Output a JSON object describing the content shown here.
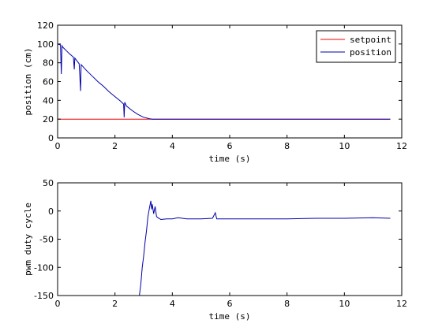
{
  "chart_data": [
    {
      "type": "line",
      "xlabel": "time (s)",
      "ylabel": "position (cm)",
      "xlim": [
        0,
        12
      ],
      "ylim": [
        0,
        120
      ],
      "xticks": [
        0,
        2,
        4,
        6,
        8,
        10,
        12
      ],
      "yticks": [
        0,
        20,
        40,
        60,
        80,
        100,
        120
      ],
      "grid": false,
      "legend": "top-right",
      "series": [
        {
          "name": "setpoint",
          "color": "#ff0000",
          "x": [
            0,
            11.6
          ],
          "y": [
            20,
            20
          ]
        },
        {
          "name": "position",
          "color": "#0000aa",
          "x": [
            0,
            0.1,
            0.13,
            0.15,
            0.17,
            0.2,
            0.3,
            0.4,
            0.55,
            0.58,
            0.6,
            0.65,
            0.75,
            0.8,
            0.82,
            0.85,
            1.0,
            1.2,
            1.4,
            1.6,
            1.8,
            2.0,
            2.2,
            2.3,
            2.32,
            2.34,
            2.4,
            2.6,
            2.8,
            3.0,
            3.2,
            3.3,
            4,
            6,
            8,
            10,
            11.6
          ],
          "y": [
            100,
            99,
            68,
            98,
            97,
            96,
            93,
            90,
            86,
            73,
            85,
            83,
            79,
            50,
            78,
            77,
            72,
            66,
            60,
            55,
            49,
            44,
            39,
            36,
            22,
            38,
            34,
            29,
            25,
            22,
            20.5,
            20,
            20,
            20,
            20,
            20,
            20
          ]
        }
      ]
    },
    {
      "type": "line",
      "xlabel": "time (s)",
      "ylabel": "pwm duty cycle",
      "xlim": [
        0,
        12
      ],
      "ylim": [
        -150,
        50
      ],
      "xticks": [
        0,
        2,
        4,
        6,
        8,
        10,
        12
      ],
      "yticks": [
        -150,
        -100,
        -50,
        0,
        50
      ],
      "grid": false,
      "series": [
        {
          "color": "#0000aa",
          "x": [
            2.85,
            2.9,
            2.95,
            3.0,
            3.05,
            3.1,
            3.15,
            3.2,
            3.25,
            3.28,
            3.3,
            3.35,
            3.4,
            3.45,
            3.5,
            3.6,
            3.8,
            4.0,
            4.2,
            4.5,
            5.0,
            5.4,
            5.5,
            5.55,
            5.6,
            6.0,
            7.0,
            8.0,
            9.0,
            10.0,
            11.0,
            11.6
          ],
          "y": [
            -150,
            -130,
            -100,
            -80,
            -55,
            -35,
            -10,
            5,
            18,
            3,
            12,
            -5,
            8,
            -10,
            -12,
            -15,
            -14,
            -14,
            -12,
            -14,
            -14,
            -13,
            -3,
            -14,
            -14,
            -14,
            -14,
            -14,
            -13,
            -13,
            -12,
            -13
          ]
        }
      ]
    }
  ]
}
